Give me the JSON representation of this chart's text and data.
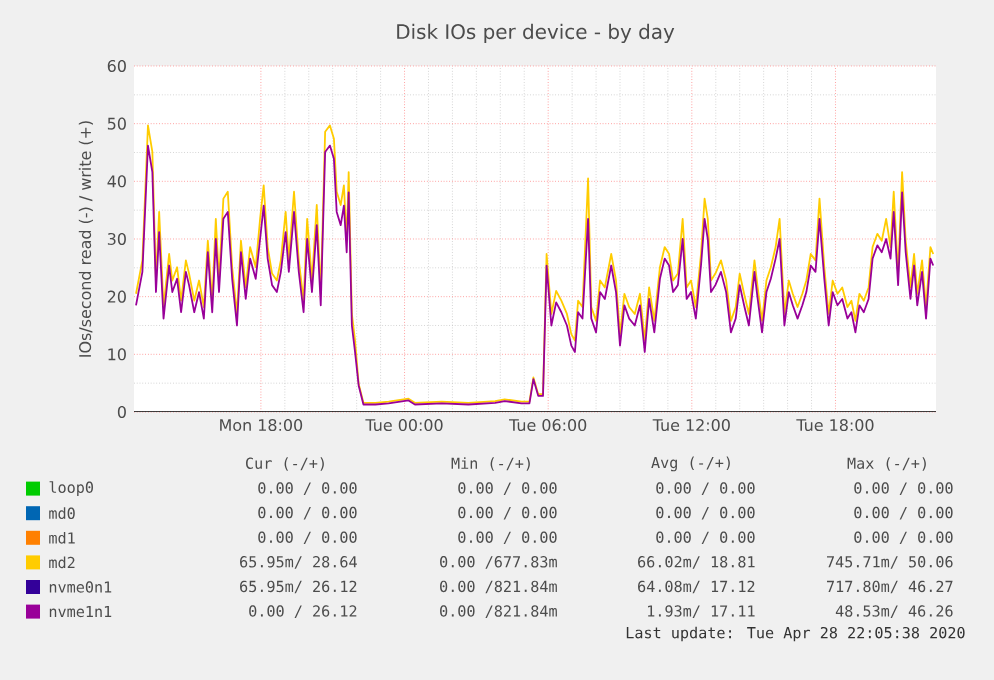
{
  "chart_data": {
    "type": "line",
    "title": "Disk IOs per device - by day",
    "ylabel": "IOs/second read (-) / write (+)",
    "xlim": [
      "2020-04-27T12:42",
      "2020-04-28T22:12"
    ],
    "ylim": [
      0,
      60
    ],
    "xticks": [
      {
        "value": "2020-04-27T18:00",
        "label": "Mon 18:00"
      },
      {
        "value": "2020-04-28T00:00",
        "label": "Tue 00:00"
      },
      {
        "value": "2020-04-28T06:00",
        "label": "Tue 06:00"
      },
      {
        "value": "2020-04-28T12:00",
        "label": "Tue 12:00"
      },
      {
        "value": "2020-04-28T18:00",
        "label": "Tue 18:00"
      }
    ],
    "yticks": [
      0,
      10,
      20,
      30,
      40,
      50,
      60
    ],
    "grid": true,
    "legend": "bottom",
    "x": [
      "2020-04-27T12:47",
      "2020-04-27T13:03",
      "2020-04-27T13:17",
      "2020-04-27T13:28",
      "2020-04-27T13:37",
      "2020-04-27T13:45",
      "2020-04-27T13:56",
      "2020-04-27T14:10",
      "2020-04-27T14:18",
      "2020-04-27T14:30",
      "2020-04-27T14:40",
      "2020-04-27T14:52",
      "2020-04-27T15:00",
      "2020-04-27T15:13",
      "2020-04-27T15:25",
      "2020-04-27T15:37",
      "2020-04-27T15:47",
      "2020-04-27T15:58",
      "2020-04-27T16:07",
      "2020-04-27T16:15",
      "2020-04-27T16:26",
      "2020-04-27T16:37",
      "2020-04-27T16:48",
      "2020-04-27T17:00",
      "2020-04-27T17:10",
      "2020-04-27T17:22",
      "2020-04-27T17:33",
      "2020-04-27T17:47",
      "2020-04-27T17:58",
      "2020-04-27T18:07",
      "2020-04-27T18:17",
      "2020-04-27T18:28",
      "2020-04-27T18:40",
      "2020-04-27T18:50",
      "2020-04-27T19:02",
      "2020-04-27T19:10",
      "2020-04-27T19:23",
      "2020-04-27T19:35",
      "2020-04-27T19:47",
      "2020-04-27T19:56",
      "2020-04-27T20:08",
      "2020-04-27T20:20",
      "2020-04-27T20:30",
      "2020-04-27T20:41",
      "2020-04-27T20:53",
      "2020-04-27T21:03",
      "2020-04-27T21:10",
      "2020-04-27T21:20",
      "2020-04-27T21:28",
      "2020-04-27T21:35",
      "2020-04-27T21:40",
      "2020-04-27T21:48",
      "2020-04-27T21:56",
      "2020-04-27T22:05",
      "2020-04-27T22:17",
      "2020-04-27T22:47",
      "2020-04-27T23:20",
      "2020-04-28T00:10",
      "2020-04-28T00:26",
      "2020-04-28T01:33",
      "2020-04-28T02:40",
      "2020-04-28T03:47",
      "2020-04-28T04:11",
      "2020-04-28T04:53",
      "2020-04-28T05:13",
      "2020-04-28T05:23",
      "2020-04-28T05:35",
      "2020-04-28T05:47",
      "2020-04-28T05:56",
      "2020-04-28T06:08",
      "2020-04-28T06:20",
      "2020-04-28T06:33",
      "2020-04-28T06:47",
      "2020-04-28T06:58",
      "2020-04-28T07:07",
      "2020-04-28T07:15",
      "2020-04-28T07:26",
      "2020-04-28T07:40",
      "2020-04-28T07:48",
      "2020-04-28T08:00",
      "2020-04-28T08:10",
      "2020-04-28T08:22",
      "2020-04-28T08:38",
      "2020-04-28T08:50",
      "2020-04-28T09:00",
      "2020-04-28T09:11",
      "2020-04-28T09:23",
      "2020-04-28T09:37",
      "2020-04-28T09:50",
      "2020-04-28T10:02",
      "2020-04-28T10:13",
      "2020-04-28T10:26",
      "2020-04-28T10:40",
      "2020-04-28T10:52",
      "2020-04-28T11:03",
      "2020-04-28T11:13",
      "2020-04-28T11:25",
      "2020-04-28T11:37",
      "2020-04-28T11:47",
      "2020-04-28T11:58",
      "2020-04-28T12:10",
      "2020-04-28T12:23",
      "2020-04-28T12:32",
      "2020-04-28T12:40",
      "2020-04-28T12:48",
      "2020-04-28T12:59",
      "2020-04-28T13:13",
      "2020-04-28T13:26",
      "2020-04-28T13:38",
      "2020-04-28T13:50",
      "2020-04-28T14:00",
      "2020-04-28T14:11",
      "2020-04-28T14:23",
      "2020-04-28T14:37",
      "2020-04-28T14:45",
      "2020-04-28T14:56",
      "2020-04-28T15:07",
      "2020-04-28T15:18",
      "2020-04-28T15:30",
      "2020-04-28T15:40",
      "2020-04-28T15:52",
      "2020-04-28T16:03",
      "2020-04-28T16:13",
      "2020-04-28T16:25",
      "2020-04-28T16:37",
      "2020-04-28T16:47",
      "2020-04-28T16:58",
      "2020-04-28T17:10",
      "2020-04-28T17:20",
      "2020-04-28T17:32",
      "2020-04-28T17:43",
      "2020-04-28T17:53",
      "2020-04-28T18:05",
      "2020-04-28T18:17",
      "2020-04-28T18:30",
      "2020-04-28T18:40",
      "2020-04-28T18:50",
      "2020-04-28T19:00",
      "2020-04-28T19:11",
      "2020-04-28T19:23",
      "2020-04-28T19:33",
      "2020-04-28T19:45",
      "2020-04-28T19:56",
      "2020-04-28T20:07",
      "2020-04-28T20:18",
      "2020-04-28T20:26",
      "2020-04-28T20:37",
      "2020-04-28T20:47",
      "2020-04-28T20:56",
      "2020-04-28T21:08",
      "2020-04-28T21:17",
      "2020-04-28T21:25",
      "2020-04-28T21:37",
      "2020-04-28T21:47",
      "2020-04-28T21:58",
      "2020-04-28T22:05"
    ],
    "series": [
      {
        "name": "loop0",
        "color": "#00cc00",
        "values": [
          null,
          null,
          null,
          null,
          null,
          null,
          null,
          null,
          null,
          null,
          null,
          null,
          null,
          null,
          null,
          null,
          null,
          null,
          null,
          null,
          null,
          null,
          null,
          null,
          null,
          null,
          null,
          null,
          null,
          null,
          null,
          null,
          null,
          null,
          null,
          null,
          null,
          null,
          null,
          null,
          null,
          null,
          null,
          null,
          null,
          null,
          null,
          null,
          null,
          null,
          null,
          null,
          null,
          null,
          null,
          null,
          null,
          null,
          null,
          null,
          null,
          null,
          null,
          null,
          null,
          null,
          null,
          null,
          null,
          null,
          null,
          null,
          null,
          null,
          null,
          null,
          null,
          null,
          null,
          null,
          null,
          null,
          null,
          null,
          null,
          null,
          null,
          null,
          null,
          null,
          null,
          null,
          null,
          null,
          null,
          null,
          null,
          null,
          null,
          null,
          null,
          null,
          null,
          null,
          null,
          null,
          null,
          null,
          null,
          null,
          null,
          null,
          null,
          null,
          null,
          null,
          null,
          null,
          null,
          null,
          null,
          null,
          null,
          null,
          null,
          null,
          null,
          null,
          null,
          null,
          null,
          null,
          null,
          null,
          null,
          null,
          null,
          null,
          null,
          null,
          null,
          null,
          null,
          null,
          null,
          null,
          null,
          null,
          null,
          null,
          null,
          null,
          null,
          null,
          null,
          null
        ]
      },
      {
        "name": "md0",
        "color": "#0066b3",
        "values": [
          null,
          null,
          null,
          null,
          null,
          null,
          null,
          null,
          null,
          null,
          null,
          null,
          null,
          null,
          null,
          null,
          null,
          null,
          null,
          null,
          null,
          null,
          null,
          null,
          null,
          null,
          null,
          null,
          null,
          null,
          null,
          null,
          null,
          null,
          null,
          null,
          null,
          null,
          null,
          null,
          null,
          null,
          null,
          null,
          null,
          null,
          null,
          null,
          null,
          null,
          null,
          null,
          null,
          null,
          null,
          null,
          null,
          null,
          null,
          null,
          null,
          null,
          null,
          null,
          null,
          null,
          null,
          null,
          null,
          null,
          null,
          null,
          null,
          null,
          null,
          null,
          null,
          null,
          null,
          null,
          null,
          null,
          null,
          null,
          null,
          null,
          null,
          null,
          null,
          null,
          null,
          null,
          null,
          null,
          null,
          null,
          null,
          null,
          null,
          null,
          null,
          null,
          null,
          null,
          null,
          null,
          null,
          null,
          null,
          null,
          null,
          null,
          null,
          null,
          null,
          null,
          null,
          null,
          null,
          null,
          null,
          null,
          null,
          null,
          null,
          null,
          null,
          null,
          null,
          null,
          null,
          null,
          null,
          null,
          null,
          null,
          null,
          null,
          null,
          null,
          null,
          null,
          null,
          null,
          null,
          null,
          null,
          null,
          null,
          null,
          null,
          null,
          null,
          null,
          null,
          null
        ]
      },
      {
        "name": "md1",
        "color": "#ff8000",
        "values": [
          null,
          null,
          null,
          null,
          null,
          null,
          null,
          null,
          null,
          null,
          null,
          null,
          null,
          null,
          null,
          null,
          null,
          null,
          null,
          null,
          null,
          null,
          null,
          null,
          null,
          null,
          null,
          null,
          null,
          null,
          null,
          null,
          null,
          null,
          null,
          null,
          null,
          null,
          null,
          null,
          null,
          null,
          null,
          null,
          null,
          null,
          null,
          null,
          null,
          null,
          null,
          null,
          null,
          null,
          null,
          null,
          null,
          null,
          null,
          null,
          null,
          null,
          null,
          null,
          null,
          null,
          null,
          null,
          null,
          null,
          null,
          null,
          null,
          null,
          null,
          null,
          null,
          null,
          null,
          null,
          null,
          null,
          null,
          null,
          null,
          null,
          null,
          null,
          null,
          null,
          null,
          null,
          null,
          null,
          null,
          null,
          null,
          null,
          null,
          null,
          null,
          null,
          null,
          null,
          null,
          null,
          null,
          null,
          null,
          null,
          null,
          null,
          null,
          null,
          null,
          null,
          null,
          null,
          null,
          null,
          null,
          null,
          null,
          null,
          null,
          null,
          null,
          null,
          null,
          null,
          null,
          null,
          null,
          null,
          null,
          null,
          null,
          null,
          null,
          null,
          null,
          null,
          null,
          null,
          null,
          null,
          null,
          null,
          null,
          null,
          null,
          null,
          null,
          null,
          null,
          null
        ]
      },
      {
        "name": "md2",
        "color": "#ffcc00",
        "values": [
          20.5,
          26.3,
          49.7,
          45.1,
          22.8,
          34.7,
          18.2,
          27.4,
          22.8,
          25.1,
          19.3,
          26.3,
          24.0,
          19.3,
          22.8,
          18.2,
          29.7,
          19.3,
          33.5,
          22.8,
          37.0,
          38.2,
          25.1,
          17.0,
          29.7,
          21.6,
          28.6,
          25.1,
          33.5,
          39.3,
          28.6,
          24.0,
          22.8,
          26.3,
          34.7,
          26.3,
          38.2,
          26.3,
          19.3,
          33.5,
          22.8,
          35.9,
          20.5,
          48.6,
          49.7,
          47.4,
          38.2,
          35.9,
          39.3,
          29.7,
          41.6,
          17.0,
          12.4,
          4.9,
          1.6,
          1.6,
          1.8,
          2.3,
          1.6,
          1.8,
          1.6,
          1.9,
          2.2,
          1.8,
          1.8,
          6.0,
          3.1,
          3.1,
          27.4,
          17.0,
          21.0,
          19.3,
          17.0,
          13.5,
          12.4,
          19.3,
          18.2,
          40.5,
          18.2,
          15.8,
          22.8,
          21.6,
          27.4,
          22.8,
          13.5,
          20.5,
          18.2,
          17.0,
          20.5,
          12.4,
          21.6,
          15.8,
          25.1,
          28.6,
          27.4,
          22.8,
          24.0,
          33.5,
          21.6,
          22.8,
          18.2,
          27.4,
          37.0,
          33.5,
          22.8,
          24.0,
          26.3,
          22.8,
          15.8,
          18.2,
          24.0,
          20.5,
          17.0,
          26.3,
          21.6,
          15.8,
          22.8,
          25.1,
          28.6,
          33.5,
          17.0,
          22.8,
          20.5,
          18.2,
          20.5,
          22.8,
          27.4,
          26.3,
          37.0,
          25.1,
          17.0,
          22.8,
          20.5,
          21.6,
          18.2,
          19.3,
          15.8,
          20.5,
          19.3,
          21.6,
          28.6,
          30.9,
          29.7,
          33.5,
          28.6,
          38.2,
          24.0,
          41.6,
          29.7,
          21.6,
          27.4,
          20.5,
          26.3,
          18.2,
          28.6,
          27.4
        ]
      },
      {
        "name": "nvme0n1",
        "color": "#330099",
        "values": [
          null,
          null,
          null,
          null,
          null,
          null,
          null,
          null,
          null,
          null,
          null,
          null,
          null,
          null,
          null,
          null,
          null,
          null,
          null,
          null,
          null,
          null,
          null,
          null,
          null,
          null,
          null,
          null,
          null,
          null,
          null,
          null,
          null,
          null,
          null,
          null,
          null,
          null,
          null,
          null,
          null,
          null,
          null,
          null,
          null,
          null,
          null,
          null,
          null,
          null,
          null,
          null,
          null,
          null,
          null,
          null,
          null,
          null,
          null,
          null,
          null,
          null,
          null,
          null,
          null,
          null,
          null,
          null,
          null,
          null,
          null,
          null,
          null,
          null,
          null,
          null,
          null,
          null,
          null,
          null,
          null,
          null,
          null,
          null,
          null,
          null,
          null,
          null,
          null,
          null,
          null,
          null,
          null,
          null,
          null,
          null,
          null,
          null,
          null,
          null,
          null,
          null,
          null,
          null,
          null,
          null,
          null,
          null,
          null,
          null,
          null,
          null,
          null,
          null,
          null,
          null,
          null,
          null,
          null,
          null,
          null,
          null,
          null,
          null,
          null,
          null,
          null,
          null,
          null,
          null,
          null,
          null,
          null,
          null,
          null,
          null,
          null,
          null,
          null,
          null,
          null,
          null,
          null,
          null,
          null,
          null,
          null,
          null,
          null,
          null,
          null,
          null,
          null,
          null,
          null,
          null
        ]
      },
      {
        "name": "nvme1n1",
        "color": "#990099",
        "values": [
          18.5,
          24.3,
          46.2,
          41.6,
          20.8,
          31.2,
          16.2,
          25.4,
          20.8,
          23.1,
          17.3,
          24.3,
          22.0,
          17.3,
          20.8,
          16.2,
          27.7,
          17.3,
          30.0,
          20.8,
          33.5,
          34.7,
          23.1,
          15.0,
          27.7,
          19.6,
          26.6,
          23.1,
          30.0,
          35.8,
          26.6,
          22.0,
          20.8,
          24.3,
          31.2,
          24.3,
          34.7,
          24.3,
          17.3,
          30.0,
          20.8,
          32.4,
          18.5,
          45.1,
          46.2,
          43.9,
          34.7,
          32.4,
          35.8,
          27.7,
          38.1,
          15.0,
          10.4,
          4.6,
          1.3,
          1.3,
          1.5,
          2.0,
          1.3,
          1.5,
          1.3,
          1.6,
          1.9,
          1.5,
          1.5,
          5.7,
          2.8,
          2.8,
          25.4,
          15.0,
          19.0,
          17.3,
          15.0,
          11.5,
          10.4,
          17.3,
          16.2,
          33.5,
          16.2,
          13.8,
          20.8,
          19.6,
          25.4,
          20.8,
          11.5,
          18.5,
          16.2,
          15.0,
          18.5,
          10.4,
          19.6,
          13.8,
          23.1,
          26.6,
          25.4,
          20.8,
          22.0,
          30.0,
          19.6,
          20.8,
          16.2,
          25.4,
          33.5,
          30.0,
          20.8,
          22.0,
          24.3,
          20.8,
          13.8,
          16.2,
          22.0,
          18.5,
          15.0,
          24.3,
          19.6,
          13.8,
          20.8,
          23.1,
          26.6,
          30.0,
          15.0,
          20.8,
          18.5,
          16.2,
          18.5,
          20.8,
          25.4,
          24.3,
          33.5,
          23.1,
          15.0,
          20.8,
          18.5,
          19.6,
          16.2,
          17.3,
          13.8,
          18.5,
          17.3,
          19.6,
          26.6,
          28.9,
          27.7,
          30.0,
          26.6,
          34.7,
          22.0,
          38.1,
          27.7,
          19.6,
          25.4,
          18.5,
          24.3,
          16.2,
          26.6,
          25.4
        ]
      }
    ],
    "annotations": [
      "Cur (-/+)",
      "Min (-/+)",
      "Avg (-/+)",
      "Max (-/+)",
      "0.00 / 0.00",
      "0.00 / 0.00",
      "0.00 / 0.00",
      "0.00 / 0.00",
      "0.00 / 0.00",
      "0.00 / 0.00",
      "0.00 / 0.00",
      "0.00 / 0.00",
      "0.00 / 0.00",
      "0.00 / 0.00",
      "0.00 / 0.00",
      "0.00 / 0.00",
      "65.95m/ 28.64",
      "0.00 /677.83m",
      "66.02m/ 18.81",
      "745.71m/ 50.06",
      "65.95m/ 26.12",
      "0.00 /821.84m",
      "64.08m/ 17.12",
      "717.80m/ 46.27",
      "0.00 / 26.12",
      "0.00 /821.84m",
      "1.93m/ 17.11",
      "48.53m/ 46.26",
      "Last update: Tue Apr 28 22:05:38 2020"
    ]
  }
}
